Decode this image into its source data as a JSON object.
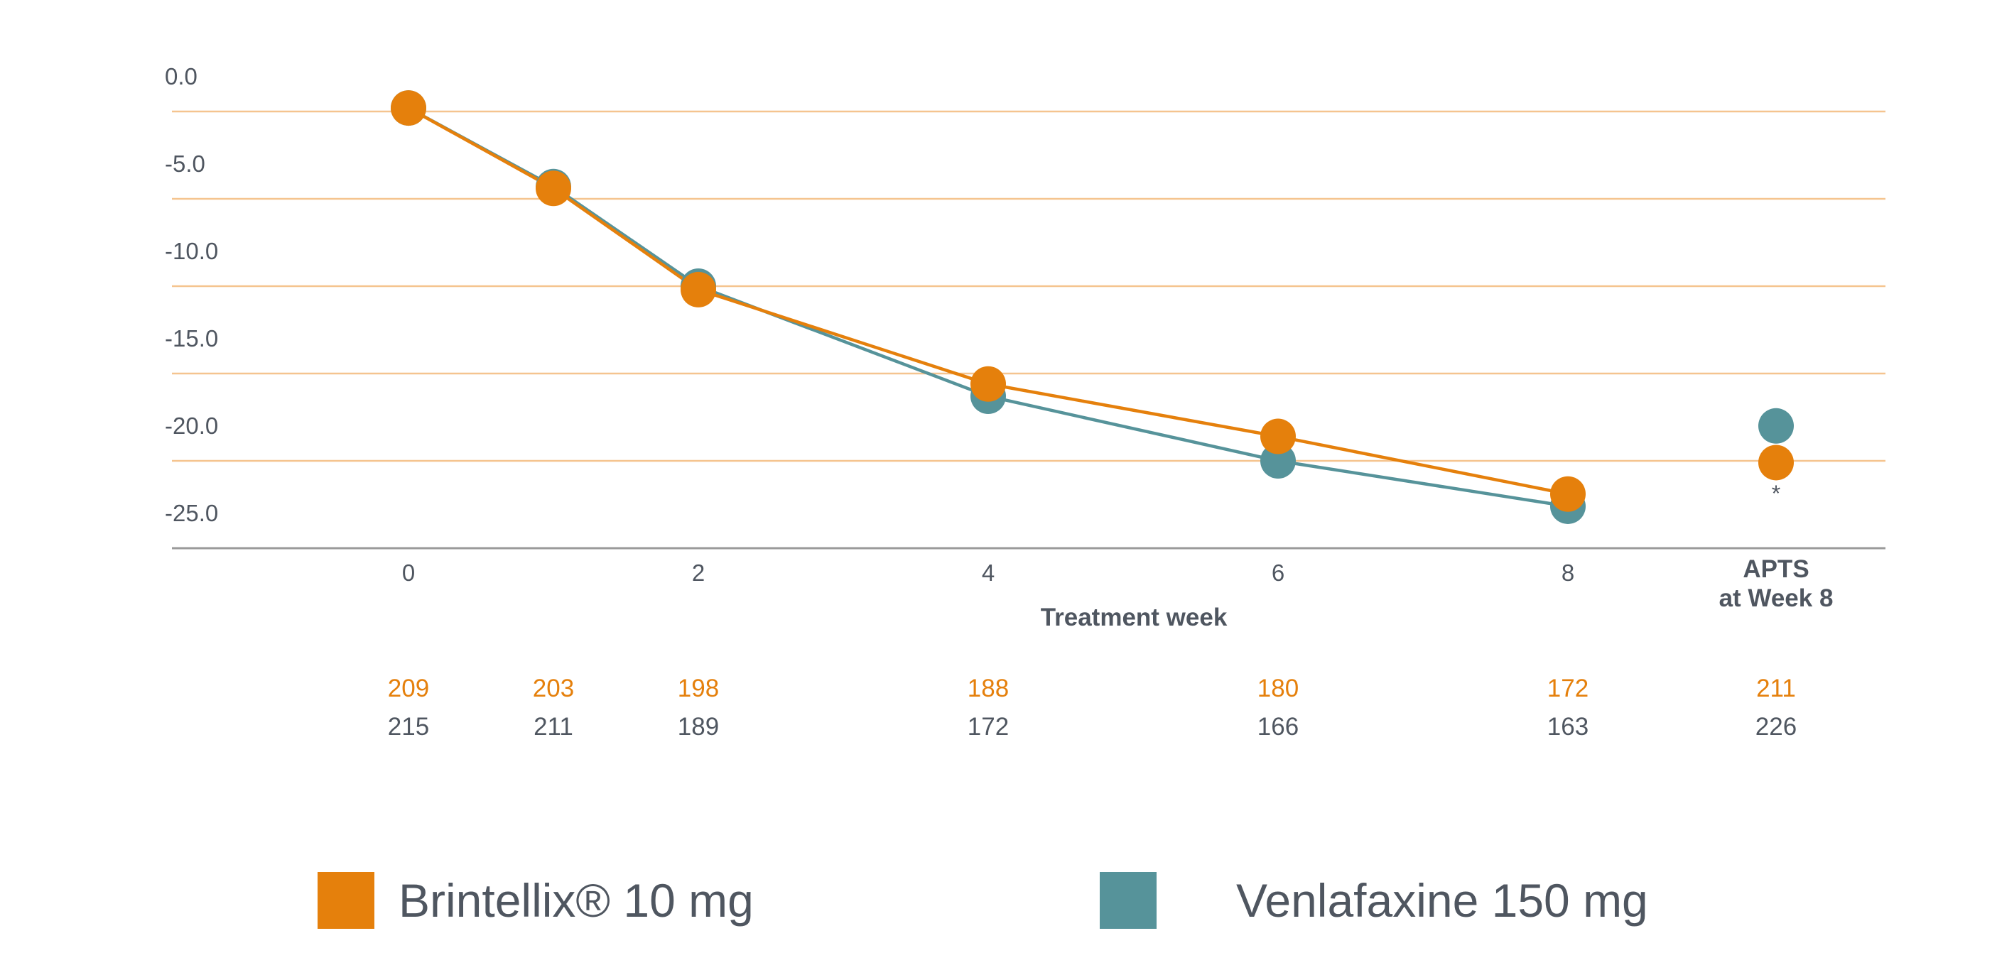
{
  "chart_data": {
    "type": "line",
    "x": [
      "0",
      "1",
      "2",
      "4",
      "6",
      "8"
    ],
    "xticks": [
      "0",
      "2",
      "4",
      "6",
      "8"
    ],
    "xlabel": "Treatment week",
    "yticks": [
      "0.0",
      "-5.0",
      "-10.0",
      "-15.0",
      "-20.0",
      "-25.0"
    ],
    "ylim": [
      -25,
      0
    ],
    "grid": true,
    "series": [
      {
        "name": "Brintellix® 10 mg",
        "color": "#e5800c",
        "values": [
          0.2,
          -4.4,
          -10.2,
          -15.6,
          -18.6,
          -21.9
        ]
      },
      {
        "name": "Venlafaxine 150 mg",
        "color": "#56939a",
        "values": [
          0.2,
          -4.3,
          -10.0,
          -16.3,
          -20.0,
          -22.6
        ]
      }
    ],
    "extra_point": {
      "label_line1": "APTS",
      "label_line2": "at Week 8",
      "values": [
        -20.1,
        -18.0
      ],
      "marker": "*"
    },
    "counts": {
      "positions": [
        "0",
        "1",
        "2",
        "4",
        "6",
        "8",
        "APTS"
      ],
      "brintellix": [
        "209",
        "203",
        "198",
        "188",
        "180",
        "172",
        "211"
      ],
      "venlafaxine": [
        "215",
        "211",
        "189",
        "172",
        "166",
        "163",
        "226"
      ]
    }
  },
  "legend": {
    "brintellix_label": "Brintellix® 10 mg",
    "brintellix_color": "#e5800c",
    "venlafaxine_label": "Venlafaxine 150 mg",
    "venlafaxine_color": "#56939a"
  },
  "colors": {
    "grid": "#f5c48f",
    "axis": "#9a9a9a",
    "text": "#4f5660"
  }
}
